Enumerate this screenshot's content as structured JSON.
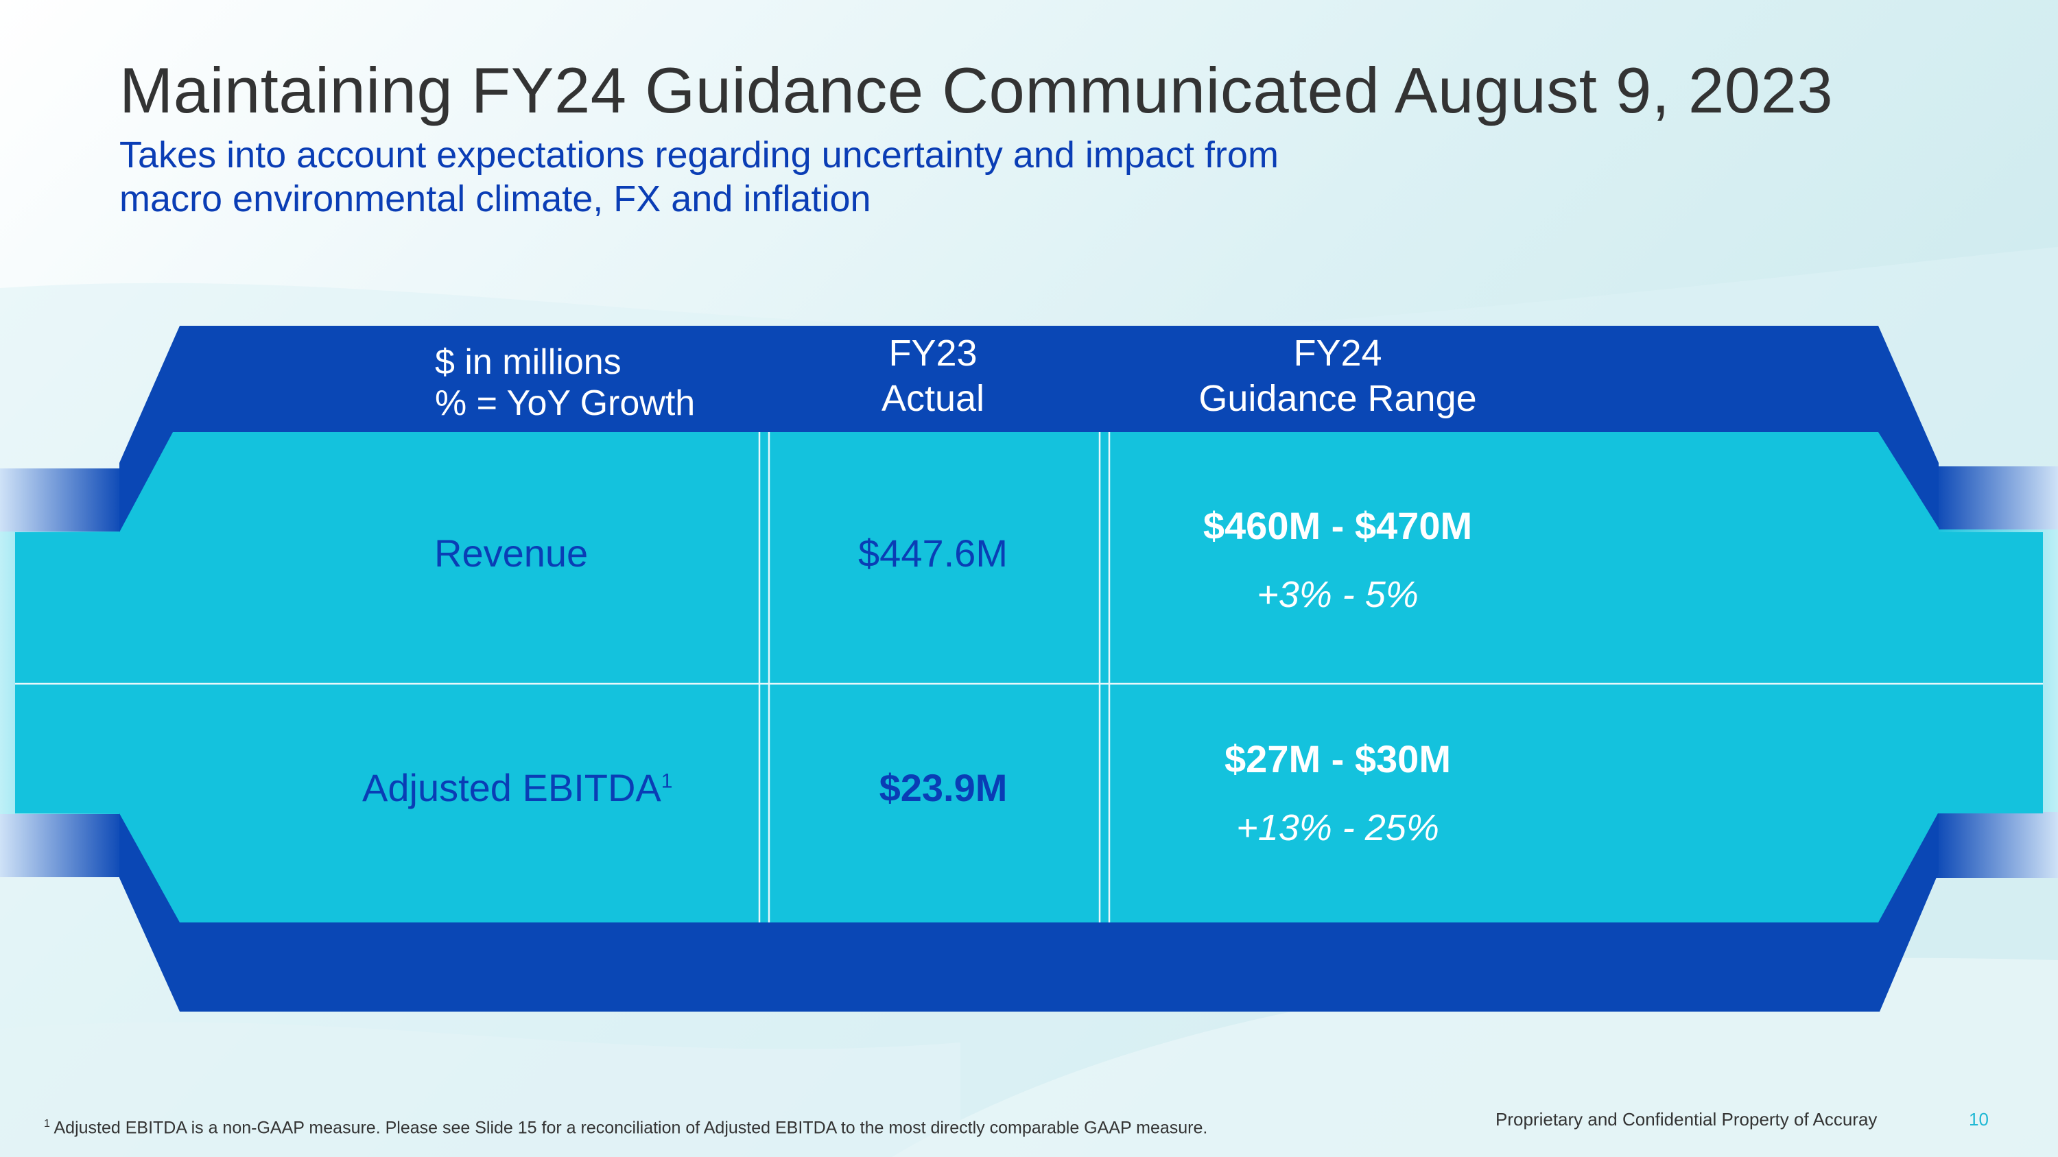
{
  "slide": {
    "title": "Maintaining FY24 Guidance Communicated August 9, 2023",
    "subtitle_line1": "Takes into account expectations regarding uncertainty and impact from",
    "subtitle_line2": "macro environmental climate, FX and inflation"
  },
  "table": {
    "header": {
      "units_line1": "$ in millions",
      "units_line2": "% = YoY Growth",
      "fy23_line1": "FY23",
      "fy23_line2": "Actual",
      "fy24_line1": "FY24",
      "fy24_line2": "Guidance Range"
    },
    "rows": [
      {
        "label": "Revenue",
        "footnote_mark": "",
        "fy23_actual": "$447.6M",
        "fy24_range": "$460M - $470M",
        "fy24_growth": "+3% - 5%"
      },
      {
        "label": "Adjusted EBITDA",
        "footnote_mark": "1",
        "fy23_actual": "$23.9M",
        "fy24_range": "$27M - $30M",
        "fy24_growth": "+13% - 25%"
      }
    ]
  },
  "footer": {
    "footnote_mark": "1",
    "footnote_text": "Adjusted EBITDA is a non-GAAP measure.  Please see Slide 15 for a reconciliation of Adjusted EBITDA to the most directly comparable GAAP measure.",
    "proprietary": "Proprietary and Confidential Property of Accuray",
    "page_number": "10"
  },
  "colors": {
    "dark_blue": "#0a47b5",
    "cyan": "#14c2dd",
    "title_gray": "#333333",
    "subtitle_blue": "#0a3db5"
  }
}
